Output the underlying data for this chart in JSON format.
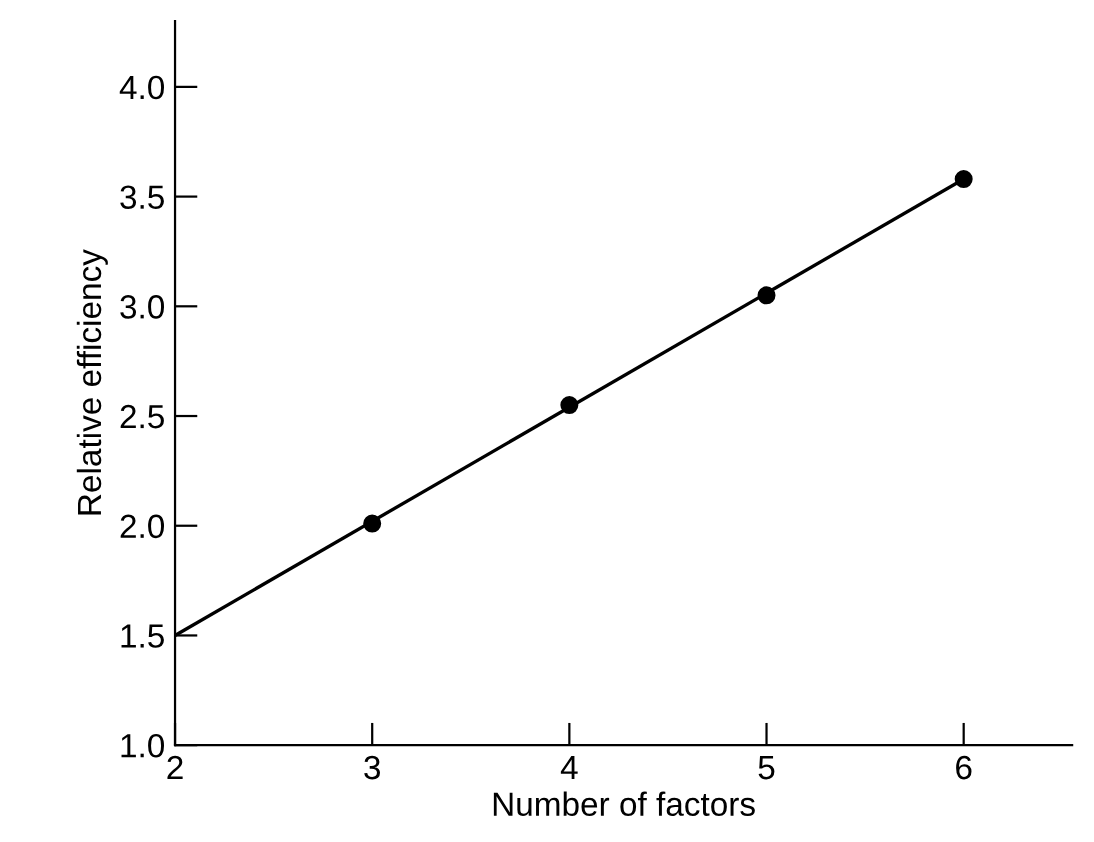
{
  "chart_data": {
    "type": "scatter",
    "xlabel": "Number of factors",
    "ylabel": "Relative efficiency",
    "series": [
      {
        "type": "line",
        "color": "#000000",
        "x": [
          2,
          6
        ],
        "values": [
          1.5,
          3.58
        ],
        "marker": "none"
      },
      {
        "color": "#000000",
        "x": [
          3,
          4,
          5,
          6
        ],
        "values": [
          2.01,
          2.55,
          3.05,
          3.58
        ],
        "marker": "circle"
      }
    ],
    "xlim": [
      2,
      6.55
    ],
    "ylim": [
      1.0,
      4.3
    ],
    "xticks": [
      2,
      3,
      4,
      5,
      6
    ],
    "yticks": [
      {
        "value": 1.0,
        "label": "1.0"
      },
      {
        "value": 1.5,
        "label": "1.5"
      },
      {
        "value": 2.0,
        "label": "2.0"
      },
      {
        "value": 2.5,
        "label": "2.5"
      },
      {
        "value": 3.0,
        "label": "3.0"
      },
      {
        "value": 3.5,
        "label": "3.5"
      },
      {
        "value": 4.0,
        "label": "4.0"
      }
    ],
    "grid": false,
    "legend": false
  }
}
